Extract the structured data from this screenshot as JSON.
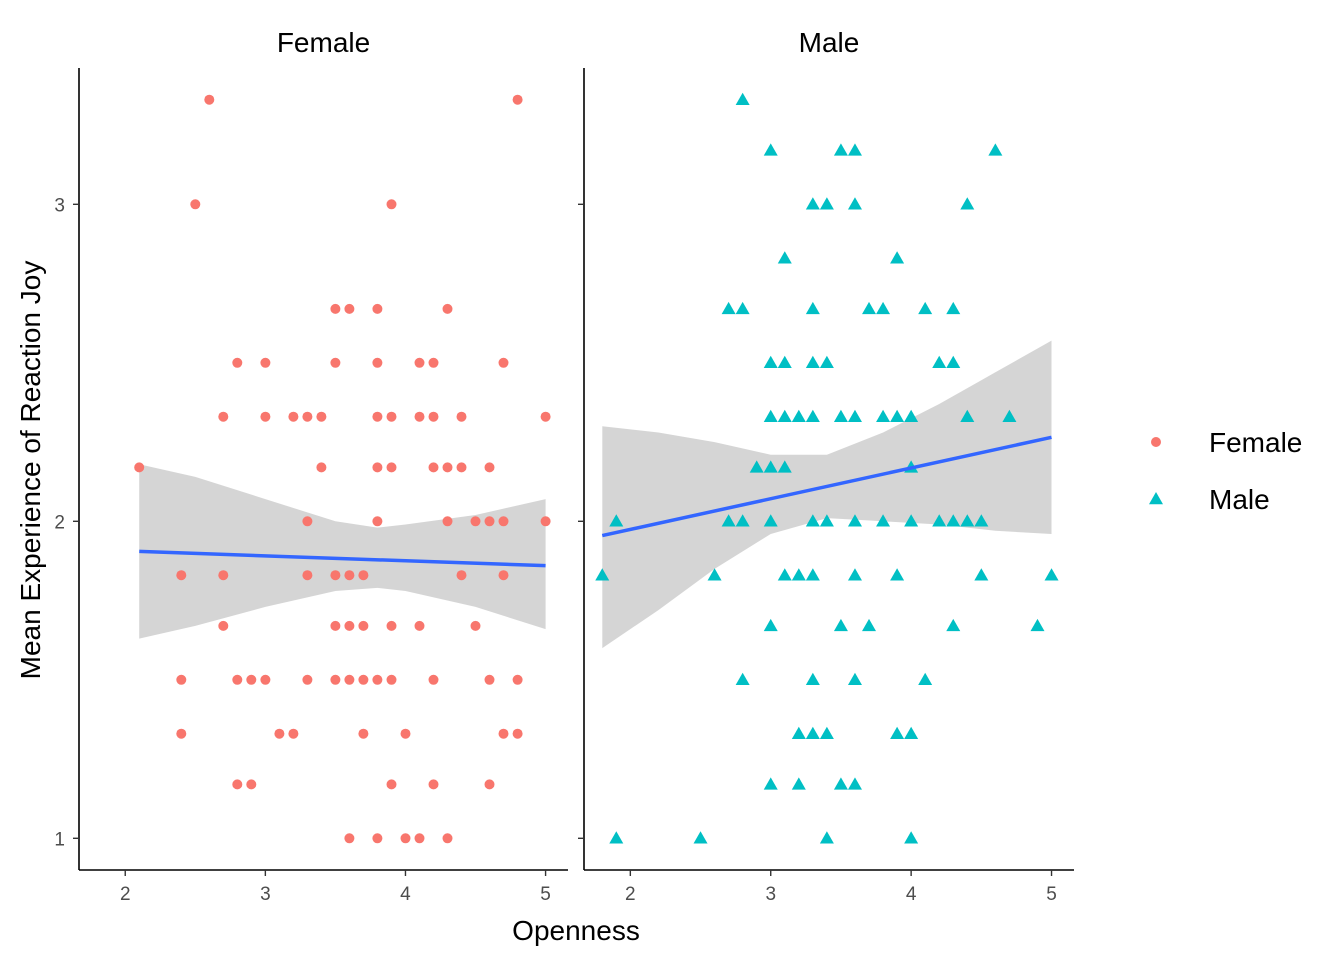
{
  "chart_data": {
    "type": "scatter",
    "xlabel": "Openness",
    "ylabel": "Mean Experience of Reaction Joy",
    "xlim": [
      1.67,
      5.16
    ],
    "ylim": [
      0.9,
      3.43
    ],
    "x_ticks": [
      2,
      3,
      4,
      5
    ],
    "y_ticks": [
      1,
      2,
      3
    ],
    "grid": false,
    "legend_position": "right",
    "colors": {
      "Female": "#F8766D",
      "Male": "#00BFC4",
      "fit_line": "#3366FF",
      "ribbon": "#D3D3D3"
    },
    "facets": [
      {
        "label": "Female",
        "shape": "circle",
        "points": [
          [
            2.6,
            3.33
          ],
          [
            4.8,
            3.33
          ],
          [
            2.5,
            3.0
          ],
          [
            3.9,
            3.0
          ],
          [
            3.5,
            2.67
          ],
          [
            3.6,
            2.67
          ],
          [
            3.8,
            2.67
          ],
          [
            4.3,
            2.67
          ],
          [
            2.8,
            2.5
          ],
          [
            3.0,
            2.5
          ],
          [
            3.5,
            2.5
          ],
          [
            3.8,
            2.5
          ],
          [
            4.1,
            2.5
          ],
          [
            4.2,
            2.5
          ],
          [
            4.7,
            2.5
          ],
          [
            2.7,
            2.33
          ],
          [
            3.0,
            2.33
          ],
          [
            3.2,
            2.33
          ],
          [
            3.3,
            2.33
          ],
          [
            3.4,
            2.33
          ],
          [
            3.8,
            2.33
          ],
          [
            3.9,
            2.33
          ],
          [
            4.1,
            2.33
          ],
          [
            4.2,
            2.33
          ],
          [
            4.4,
            2.33
          ],
          [
            5.0,
            2.33
          ],
          [
            2.1,
            2.17
          ],
          [
            3.4,
            2.17
          ],
          [
            3.8,
            2.17
          ],
          [
            3.9,
            2.17
          ],
          [
            4.2,
            2.17
          ],
          [
            4.3,
            2.17
          ],
          [
            4.4,
            2.17
          ],
          [
            4.6,
            2.17
          ],
          [
            3.3,
            2.0
          ],
          [
            3.8,
            2.0
          ],
          [
            4.3,
            2.0
          ],
          [
            4.5,
            2.0
          ],
          [
            4.6,
            2.0
          ],
          [
            4.7,
            2.0
          ],
          [
            5.0,
            2.0
          ],
          [
            2.4,
            1.83
          ],
          [
            2.7,
            1.83
          ],
          [
            3.3,
            1.83
          ],
          [
            3.5,
            1.83
          ],
          [
            3.6,
            1.83
          ],
          [
            3.7,
            1.83
          ],
          [
            4.4,
            1.83
          ],
          [
            4.7,
            1.83
          ],
          [
            2.7,
            1.67
          ],
          [
            3.5,
            1.67
          ],
          [
            3.6,
            1.67
          ],
          [
            3.7,
            1.67
          ],
          [
            3.9,
            1.67
          ],
          [
            4.1,
            1.67
          ],
          [
            4.5,
            1.67
          ],
          [
            2.4,
            1.5
          ],
          [
            2.8,
            1.5
          ],
          [
            2.9,
            1.5
          ],
          [
            3.0,
            1.5
          ],
          [
            3.3,
            1.5
          ],
          [
            3.5,
            1.5
          ],
          [
            3.6,
            1.5
          ],
          [
            3.7,
            1.5
          ],
          [
            3.8,
            1.5
          ],
          [
            3.9,
            1.5
          ],
          [
            4.2,
            1.5
          ],
          [
            4.6,
            1.5
          ],
          [
            4.8,
            1.5
          ],
          [
            2.4,
            1.33
          ],
          [
            3.1,
            1.33
          ],
          [
            3.2,
            1.33
          ],
          [
            3.7,
            1.33
          ],
          [
            4.0,
            1.33
          ],
          [
            4.7,
            1.33
          ],
          [
            4.8,
            1.33
          ],
          [
            2.8,
            1.17
          ],
          [
            2.9,
            1.17
          ],
          [
            3.9,
            1.17
          ],
          [
            4.2,
            1.17
          ],
          [
            4.6,
            1.17
          ],
          [
            3.6,
            1.0
          ],
          [
            3.8,
            1.0
          ],
          [
            4.0,
            1.0
          ],
          [
            4.1,
            1.0
          ],
          [
            4.3,
            1.0
          ]
        ],
        "fit": {
          "x": [
            2.1,
            5.0
          ],
          "y": [
            1.905,
            1.86
          ]
        },
        "ribbon": {
          "x": [
            2.1,
            2.5,
            3.0,
            3.5,
            3.8,
            4.0,
            4.5,
            5.0
          ],
          "lower": [
            1.63,
            1.67,
            1.73,
            1.78,
            1.79,
            1.78,
            1.73,
            1.66
          ],
          "upper": [
            2.18,
            2.14,
            2.07,
            2.0,
            1.98,
            1.99,
            2.02,
            2.07
          ]
        }
      },
      {
        "label": "Male",
        "shape": "triangle",
        "points": [
          [
            2.8,
            3.33
          ],
          [
            3.0,
            3.17
          ],
          [
            3.5,
            3.17
          ],
          [
            3.6,
            3.17
          ],
          [
            4.6,
            3.17
          ],
          [
            3.3,
            3.0
          ],
          [
            3.4,
            3.0
          ],
          [
            3.6,
            3.0
          ],
          [
            4.4,
            3.0
          ],
          [
            3.1,
            2.83
          ],
          [
            3.9,
            2.83
          ],
          [
            2.7,
            2.67
          ],
          [
            2.8,
            2.67
          ],
          [
            3.3,
            2.67
          ],
          [
            3.7,
            2.67
          ],
          [
            3.8,
            2.67
          ],
          [
            4.1,
            2.67
          ],
          [
            4.3,
            2.67
          ],
          [
            3.0,
            2.5
          ],
          [
            3.1,
            2.5
          ],
          [
            3.3,
            2.5
          ],
          [
            3.4,
            2.5
          ],
          [
            4.2,
            2.5
          ],
          [
            4.3,
            2.5
          ],
          [
            3.0,
            2.33
          ],
          [
            3.1,
            2.33
          ],
          [
            3.2,
            2.33
          ],
          [
            3.3,
            2.33
          ],
          [
            3.5,
            2.33
          ],
          [
            3.6,
            2.33
          ],
          [
            3.8,
            2.33
          ],
          [
            3.9,
            2.33
          ],
          [
            4.0,
            2.33
          ],
          [
            4.4,
            2.33
          ],
          [
            4.7,
            2.33
          ],
          [
            2.9,
            2.17
          ],
          [
            3.0,
            2.17
          ],
          [
            3.1,
            2.17
          ],
          [
            4.0,
            2.17
          ],
          [
            1.9,
            2.0
          ],
          [
            2.7,
            2.0
          ],
          [
            2.8,
            2.0
          ],
          [
            3.0,
            2.0
          ],
          [
            3.3,
            2.0
          ],
          [
            3.4,
            2.0
          ],
          [
            3.6,
            2.0
          ],
          [
            3.8,
            2.0
          ],
          [
            4.0,
            2.0
          ],
          [
            4.2,
            2.0
          ],
          [
            4.3,
            2.0
          ],
          [
            4.4,
            2.0
          ],
          [
            4.5,
            2.0
          ],
          [
            1.8,
            1.83
          ],
          [
            2.6,
            1.83
          ],
          [
            3.1,
            1.83
          ],
          [
            3.2,
            1.83
          ],
          [
            3.3,
            1.83
          ],
          [
            3.6,
            1.83
          ],
          [
            3.9,
            1.83
          ],
          [
            4.5,
            1.83
          ],
          [
            5.0,
            1.83
          ],
          [
            3.0,
            1.67
          ],
          [
            3.5,
            1.67
          ],
          [
            3.7,
            1.67
          ],
          [
            4.3,
            1.67
          ],
          [
            4.9,
            1.67
          ],
          [
            2.8,
            1.5
          ],
          [
            3.3,
            1.5
          ],
          [
            3.6,
            1.5
          ],
          [
            4.1,
            1.5
          ],
          [
            3.2,
            1.33
          ],
          [
            3.3,
            1.33
          ],
          [
            3.4,
            1.33
          ],
          [
            3.9,
            1.33
          ],
          [
            4.0,
            1.33
          ],
          [
            3.0,
            1.17
          ],
          [
            3.2,
            1.17
          ],
          [
            3.5,
            1.17
          ],
          [
            3.6,
            1.17
          ],
          [
            1.9,
            1.0
          ],
          [
            2.5,
            1.0
          ],
          [
            3.4,
            1.0
          ],
          [
            4.0,
            1.0
          ]
        ],
        "fit": {
          "x": [
            1.8,
            5.0
          ],
          "y": [
            1.955,
            2.265
          ]
        },
        "ribbon": {
          "x": [
            1.8,
            2.2,
            2.6,
            3.0,
            3.4,
            3.8,
            4.2,
            4.6,
            5.0
          ],
          "lower": [
            1.6,
            1.72,
            1.85,
            1.96,
            2.01,
            2.0,
            1.99,
            1.97,
            1.96
          ],
          "upper": [
            2.3,
            2.28,
            2.25,
            2.21,
            2.21,
            2.28,
            2.37,
            2.47,
            2.57
          ]
        }
      }
    ],
    "legend": [
      {
        "label": "Female",
        "shape": "circle"
      },
      {
        "label": "Male",
        "shape": "triangle"
      }
    ]
  }
}
